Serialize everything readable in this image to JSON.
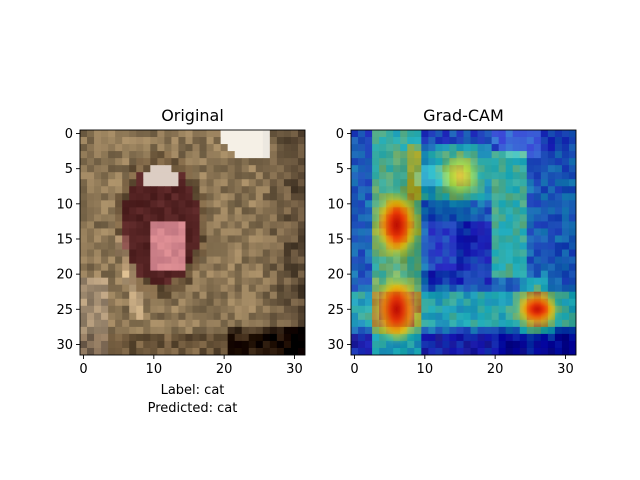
{
  "chart_data": [
    {
      "type": "heatmap",
      "title": "Original",
      "xticks": [
        0,
        10,
        20,
        30
      ],
      "yticks": [
        0,
        5,
        10,
        15,
        20,
        25,
        30
      ],
      "xlim": [
        -0.5,
        31.5
      ],
      "ylim": [
        31.5,
        -0.5
      ],
      "caption_lines": [
        "Label: cat",
        "Predicted: cat"
      ]
    },
    {
      "type": "heatmap",
      "title": "Grad-CAM",
      "xticks": [
        0,
        10,
        20,
        30
      ],
      "yticks": [
        0,
        5,
        10,
        15,
        20,
        25,
        30
      ],
      "xlim": [
        -0.5,
        31.5
      ],
      "ylim": [
        31.5,
        -0.5
      ],
      "colormap": "jet overlay",
      "hotspots": [
        {
          "x": 6,
          "y": 13,
          "level": 1.0
        },
        {
          "x": 6,
          "y": 25,
          "level": 1.0
        },
        {
          "x": 26,
          "y": 25,
          "level": 0.9
        },
        {
          "x": 15,
          "y": 6,
          "level": 0.65
        }
      ]
    }
  ]
}
